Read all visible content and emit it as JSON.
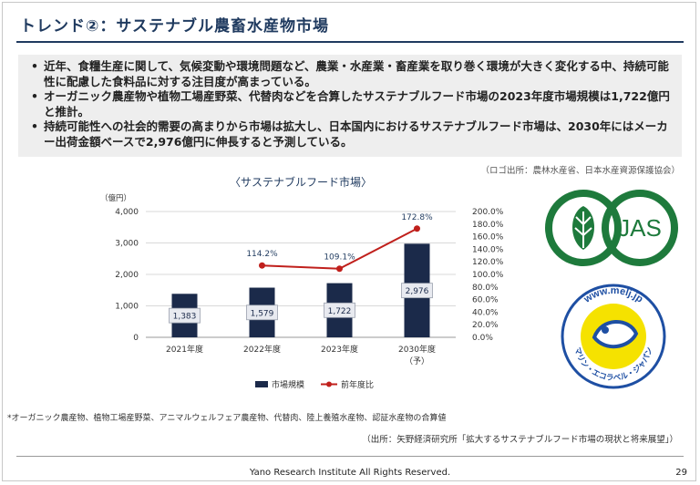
{
  "slide": {
    "title": "トレンド②：サステナブル農畜水産物市場",
    "bullets": [
      "近年、食糧生産に関して、気候変動や環境問題など、農業・水産業・畜産業を取り巻く環境が大きく変化する中、持続可能性に配慮した食料品に対する注目度が高まっている。",
      "オーガニック農産物や植物工場産野菜、代替肉などを合算したサステナブルフード市場の2023年度市場規模は1,722億円と推計。",
      "持続可能性への社会的需要の高まりから市場は拡大し、日本国内におけるサステナブルフード市場は、2030年にはメーカー出荷金額ベースで2,976億円に伸長すると予測している。"
    ],
    "bullet_mark": "•",
    "logo_source": "（ロゴ出所：農林水産省、日本水産資源保護協会）",
    "footnote": "*オーガニック農産物、植物工場産野菜、アニマルウェルフェア農産物、代替肉、陸上養殖水産物、認証水産物の合算値",
    "source": "（出所：矢野経済研究所「拡大するサステナブルフード市場の現状と将来展望」）",
    "footer": "Yano Research Institute All Rights Reserved.",
    "page_number": "29",
    "jas_label": "JAS",
    "mel_text": "www.melj.jp",
    "mel_arc_text": "マリン・エコラベル・ジャパン"
  },
  "colors": {
    "title": "#1f3a5f",
    "bar": "#1b2a4a",
    "line": "#c0201c",
    "jas_green": "#1e7a3c",
    "mel_blue": "#1e4fa3",
    "mel_yellow": "#f5e200"
  },
  "chart_data": {
    "type": "bar",
    "title": "〈サステナブルフード市場〉",
    "ylabel": "（億円）",
    "categories": [
      "2021年度",
      "2022年度",
      "2023年度",
      "2030年度\n（予）"
    ],
    "ylim": [
      0,
      4000
    ],
    "yticks": [
      "0",
      "1,000",
      "2,000",
      "3,000",
      "4,000"
    ],
    "y2lim": [
      0,
      200
    ],
    "y2ticks": [
      "0.0%",
      "20.0%",
      "40.0%",
      "60.0%",
      "80.0%",
      "100.0%",
      "120.0%",
      "140.0%",
      "160.0%",
      "180.0%",
      "200.0%"
    ],
    "grid": true,
    "legend": "bottom",
    "series": [
      {
        "name": "市場規模",
        "type": "bar",
        "values": [
          1383,
          1579,
          1722,
          2976
        ],
        "labels": [
          "1,383",
          "1,579",
          "1,722",
          "2,976"
        ]
      },
      {
        "name": "前年度比",
        "type": "line",
        "axis": "secondary",
        "values": [
          null,
          114.2,
          109.1,
          172.8
        ],
        "labels": [
          "",
          "114.2%",
          "109.1%",
          "172.8%"
        ]
      }
    ]
  }
}
